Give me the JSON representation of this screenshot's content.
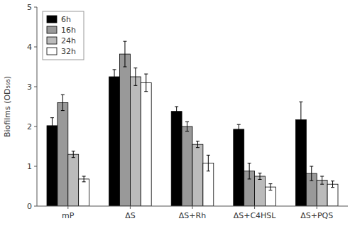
{
  "chart_data": {
    "type": "bar",
    "y_label": "Biofilms (OD₅₉₅)",
    "categories": [
      "mP",
      "ΔS",
      "ΔS+Rh",
      "ΔS+C4HSL",
      "ΔS+PQS"
    ],
    "series": [
      {
        "name": "6h",
        "color": "#000000",
        "values": [
          2.02,
          3.25,
          2.38,
          1.93,
          2.17
        ],
        "errors": [
          0.2,
          0.18,
          0.12,
          0.12,
          0.45
        ]
      },
      {
        "name": "16h",
        "color": "#999999",
        "values": [
          2.6,
          3.82,
          2.0,
          0.88,
          0.82
        ],
        "errors": [
          0.2,
          0.32,
          0.12,
          0.2,
          0.18
        ]
      },
      {
        "name": "24h",
        "color": "#bbbbbb",
        "values": [
          1.3,
          3.25,
          1.55,
          0.75,
          0.65
        ],
        "errors": [
          0.08,
          0.22,
          0.08,
          0.08,
          0.1
        ]
      },
      {
        "name": "32h",
        "color": "#ffffff",
        "values": [
          0.68,
          3.1,
          1.08,
          0.48,
          0.55
        ],
        "errors": [
          0.07,
          0.22,
          0.2,
          0.08,
          0.08
        ]
      }
    ],
    "ylim": [
      0,
      5
    ],
    "yticks": [
      0,
      1,
      2,
      3,
      4,
      5
    ],
    "grid": false,
    "legend": "upper left"
  }
}
